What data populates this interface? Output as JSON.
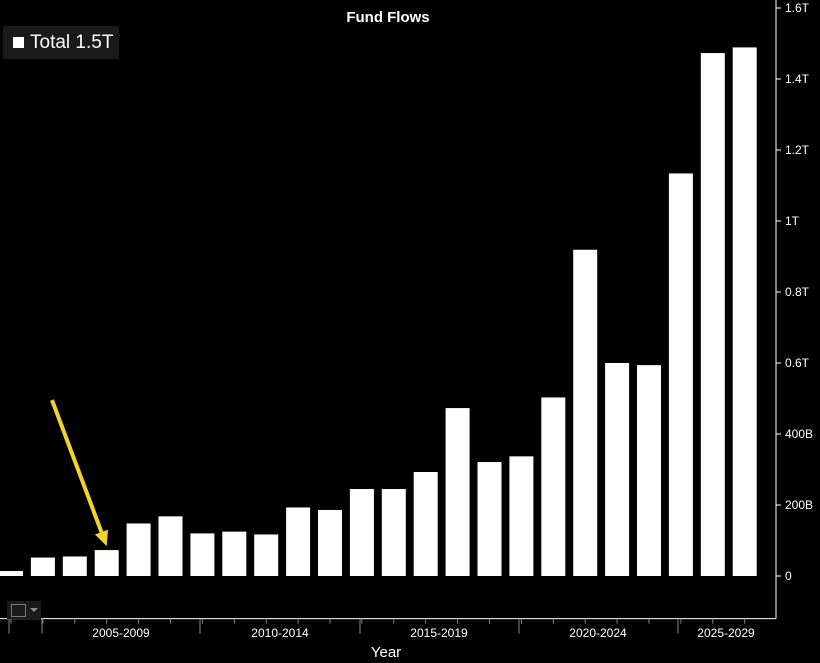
{
  "chart_data": {
    "type": "bar",
    "title": "Fund Flows",
    "legend": {
      "label": "Total 1.5T",
      "placement": "top-left"
    },
    "xlabel": "Year",
    "ylabel": "",
    "ylim": [
      -120,
      1600
    ],
    "yticks": [
      {
        "value": 0,
        "label": "0"
      },
      {
        "value": 200,
        "label": "200B"
      },
      {
        "value": 400,
        "label": "400B"
      },
      {
        "value": 600,
        "label": "0.6T"
      },
      {
        "value": 800,
        "label": "0.8T"
      },
      {
        "value": 1000,
        "label": "1T"
      },
      {
        "value": 1200,
        "label": "1.2T"
      },
      {
        "value": 1400,
        "label": "1.4T"
      },
      {
        "value": 1600,
        "label": "1.6T"
      }
    ],
    "category_groups": [
      "2005-2009",
      "2010-2014",
      "2015-2019",
      "2020-2024",
      "2025-2029"
    ],
    "values": [
      14,
      52,
      55,
      73,
      148,
      168,
      120,
      125,
      117,
      193,
      186,
      245,
      245,
      293,
      473,
      321,
      337,
      503,
      919,
      600,
      594,
      1134,
      1473,
      1489
    ],
    "bar_color": "#ffffff",
    "annotation": {
      "type": "arrow",
      "color": "#f2d22c",
      "points_to_bar_index": 3
    },
    "grid": false
  },
  "toolbar": {
    "chart_type_icon": "line-chart-icon"
  }
}
